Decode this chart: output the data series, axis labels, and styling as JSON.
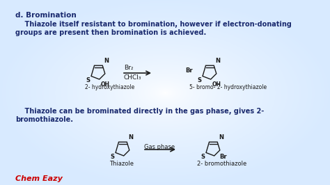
{
  "bg_color": "#f0f4f8",
  "title": "d. Bromination",
  "title_color": "#1a2a6e",
  "para1_line1": "    Thiazole itself resistant to bromination, however if electron-donating",
  "para1_line2": "groups are present then bromination is achieved.",
  "para2_line1": "    Thiazole can be brominated directly in the gas phase, gives 2-",
  "para2_line2": "bromothiazole.",
  "text_color": "#1a2a6e",
  "reaction1_reagent_top": "Br₂",
  "reaction1_reagent_bot": "CHCl₃",
  "reaction1_label_left": "2- hydroxythiazole",
  "reaction1_label_right": "5- bromo- 2- hydroxythiazole",
  "reaction2_reagent": "Gas phase",
  "reaction2_label_left": "Thiazole",
  "reaction2_label_right": "2- bromothiazole",
  "chem_eazy_color": "#cc0000",
  "chem_eazy_text": "Chem Eazy",
  "struct_color": "#1a1a1a",
  "arrow_color": "#1a1a1a"
}
